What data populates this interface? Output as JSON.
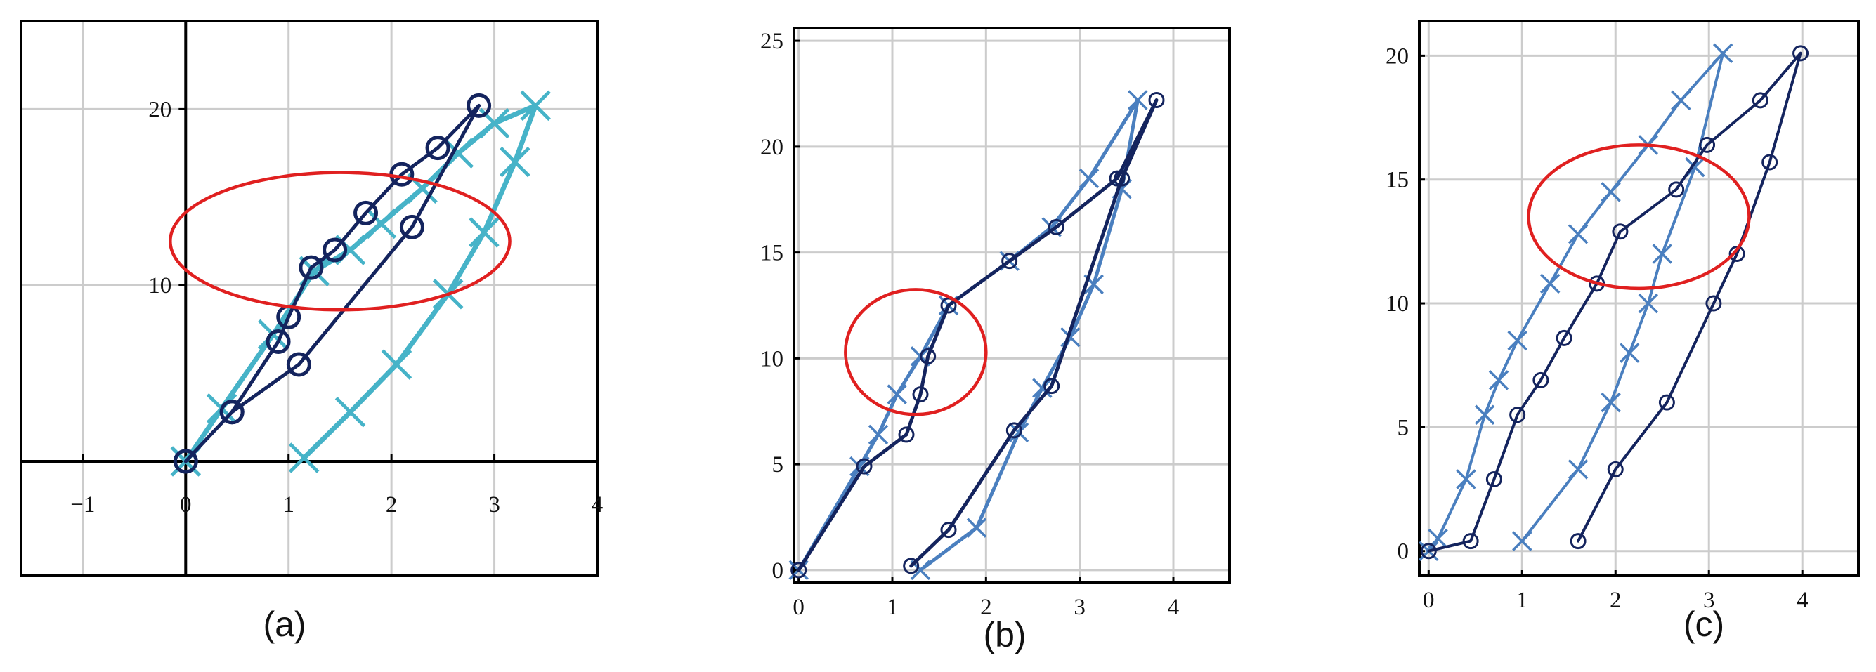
{
  "colors": {
    "dark": "#14245e",
    "light": "#46b3c8",
    "mid": "#4a7fbf",
    "highlight": "#e02020",
    "grid": "#cccccc",
    "frame": "#000000"
  },
  "captions": [
    "(a)",
    "(b)",
    "(c)"
  ],
  "chart_data": [
    {
      "type": "line",
      "xlim": [
        -1.6,
        4.0
      ],
      "ylim": [
        -6.5,
        25.0
      ],
      "axes_style": "centered",
      "grid": true,
      "xticks": [
        -1,
        0,
        1,
        2,
        3,
        4
      ],
      "xtick_labels": [
        "−1",
        "0",
        "1",
        "2",
        "3",
        "4"
      ],
      "yticks": [
        10,
        20
      ],
      "ytick_labels": [
        "10",
        "20"
      ],
      "series": [
        {
          "color": "light",
          "marker": "x",
          "width": 7,
          "x": [
            0.0,
            0.35,
            0.85,
            1.25,
            1.6,
            1.9,
            2.3,
            2.65,
            3.0,
            3.4,
            3.2,
            2.9,
            2.55,
            2.05,
            1.6,
            1.15
          ],
          "y": [
            0.0,
            3.0,
            7.2,
            10.8,
            12.0,
            13.5,
            15.5,
            17.5,
            19.2,
            20.2,
            17.0,
            13.0,
            9.5,
            5.5,
            2.8,
            0.2
          ]
        },
        {
          "color": "dark",
          "marker": "o",
          "width": 5,
          "x": [
            0.0,
            0.45,
            0.9,
            1.0,
            1.22,
            1.45,
            1.75,
            2.1,
            2.45,
            2.85,
            2.2,
            1.1,
            0.45,
            0.0
          ],
          "y": [
            0.0,
            2.8,
            6.8,
            8.2,
            11.0,
            12.0,
            14.1,
            16.3,
            17.8,
            20.2,
            13.3,
            5.5,
            2.8,
            0.0
          ]
        }
      ],
      "annotation": {
        "shape": "ellipse",
        "cx": 1.5,
        "cy": 12.5,
        "rx": 1.65,
        "ry": 3.9
      }
    },
    {
      "type": "line",
      "xlim": [
        -0.05,
        4.6
      ],
      "ylim": [
        -0.6,
        25.6
      ],
      "axes_style": "box",
      "grid": true,
      "xticks": [
        0,
        1,
        2,
        3,
        4
      ],
      "xtick_labels": [
        "0",
        "1",
        "2",
        "3",
        "4"
      ],
      "yticks": [
        0,
        5,
        10,
        15,
        20,
        25
      ],
      "ytick_labels": [
        "0",
        "5",
        "10",
        "15",
        "20",
        "25"
      ],
      "series": [
        {
          "color": "mid",
          "marker": "x",
          "width": 5,
          "x": [
            0.0,
            0.65,
            0.85,
            1.05,
            1.3,
            1.6,
            2.25,
            2.7,
            3.1,
            3.62,
            3.45,
            3.15,
            2.9,
            2.6,
            2.35,
            1.9,
            1.3
          ],
          "y": [
            0.0,
            4.9,
            6.4,
            8.3,
            10.1,
            12.5,
            14.6,
            16.2,
            18.5,
            22.2,
            18.0,
            13.5,
            11.0,
            8.6,
            6.5,
            2.0,
            0.0
          ]
        },
        {
          "color": "dark",
          "marker": "o",
          "width": 5,
          "x": [
            0.0,
            0.7,
            1.15,
            1.3,
            1.38,
            1.6,
            2.25,
            2.75,
            3.4,
            3.82,
            3.45,
            2.7,
            2.3,
            1.6,
            1.2
          ],
          "y": [
            0.0,
            4.9,
            6.4,
            8.3,
            10.1,
            12.5,
            14.6,
            16.2,
            18.5,
            22.2,
            18.5,
            8.7,
            6.6,
            1.9,
            0.2
          ]
        }
      ],
      "annotation": {
        "shape": "ellipse",
        "cx": 1.25,
        "cy": 10.3,
        "rx": 0.75,
        "ry": 2.95
      }
    },
    {
      "type": "line",
      "xlim": [
        -0.1,
        4.6
      ],
      "ylim": [
        -1.0,
        21.4
      ],
      "axes_style": "box",
      "grid": true,
      "xticks": [
        0,
        1,
        2,
        3,
        4
      ],
      "xtick_labels": [
        "0",
        "1",
        "2",
        "3",
        "4"
      ],
      "yticks": [
        0,
        5,
        10,
        15,
        20
      ],
      "ytick_labels": [
        "0",
        "5",
        "10",
        "15",
        "20"
      ],
      "series": [
        {
          "color": "mid",
          "marker": "x",
          "width": 4,
          "x": [
            0.0,
            0.1,
            0.4,
            0.6,
            0.75,
            0.95,
            1.3,
            1.6,
            1.95,
            2.35,
            2.7,
            3.15,
            2.85,
            2.5,
            2.35,
            2.15,
            1.95,
            1.6,
            1.0
          ],
          "y": [
            0.0,
            0.5,
            2.9,
            5.5,
            6.9,
            8.5,
            10.8,
            12.8,
            14.5,
            16.4,
            18.2,
            20.1,
            15.5,
            12.0,
            10.0,
            8.0,
            6.0,
            3.3,
            0.4
          ]
        },
        {
          "color": "dark",
          "marker": "o",
          "width": 4,
          "x": [
            0.0,
            0.45,
            0.7,
            0.95,
            1.2,
            1.45,
            1.8,
            2.05,
            2.65,
            2.98,
            3.55,
            3.98,
            3.65,
            3.3,
            3.05,
            2.55,
            2.0,
            1.6
          ],
          "y": [
            0.0,
            0.4,
            2.9,
            5.5,
            6.9,
            8.6,
            10.8,
            12.9,
            14.6,
            16.4,
            18.2,
            20.1,
            15.7,
            12.0,
            10.0,
            6.0,
            3.3,
            0.4
          ]
        }
      ],
      "annotation": {
        "shape": "ellipse",
        "cx": 2.25,
        "cy": 13.5,
        "rx": 1.18,
        "ry": 2.9
      }
    }
  ]
}
